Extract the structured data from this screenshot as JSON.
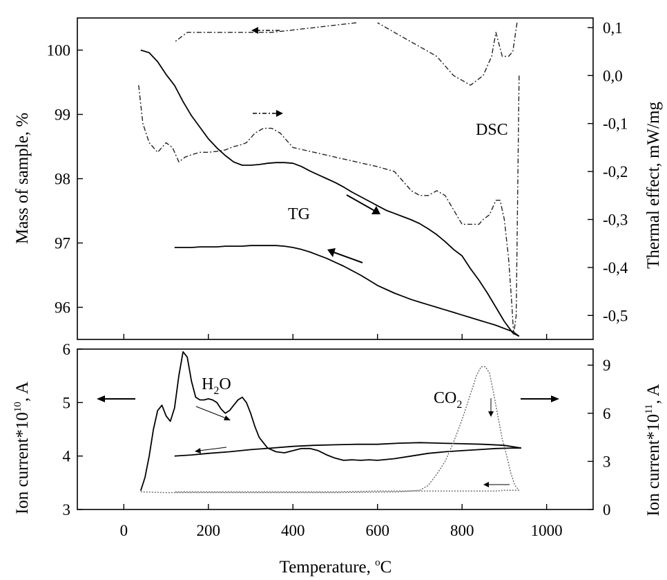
{
  "chart_data": [
    {
      "type": "line",
      "panel": "top",
      "xlabel": "",
      "ylabel_left": "Mass of sample, %",
      "ylabel_right": "Thermal effect, mW/mg",
      "xlim": [
        -110,
        1110
      ],
      "ylim_left": [
        95.5,
        100.5
      ],
      "ylim_right": [
        -0.55,
        0.12
      ],
      "yticks_left": [
        "96",
        "97",
        "98",
        "99",
        "100"
      ],
      "yticks_right": [
        "0,1",
        "0,0",
        "-0,1",
        "-0,2",
        "-0,3",
        "-0,4",
        "-0,5"
      ],
      "annotations": [
        "TG",
        "DSC"
      ],
      "series": [
        {
          "axis": "left",
          "style": "solid",
          "branch": "heating",
          "x": [
            40,
            60,
            80,
            100,
            120,
            140,
            160,
            180,
            200,
            220,
            240,
            260,
            280,
            300,
            320,
            340,
            360,
            380,
            400,
            420,
            440,
            460,
            480,
            500,
            520,
            540,
            560,
            580,
            600,
            620,
            640,
            660,
            680,
            700,
            720,
            740,
            760,
            780,
            800,
            820,
            840,
            860,
            880,
            900,
            920,
            935
          ],
          "y": [
            100.0,
            99.96,
            99.82,
            99.62,
            99.45,
            99.2,
            98.98,
            98.8,
            98.62,
            98.48,
            98.36,
            98.26,
            98.21,
            98.21,
            98.22,
            98.24,
            98.25,
            98.25,
            98.24,
            98.19,
            98.12,
            98.06,
            98.0,
            97.94,
            97.87,
            97.79,
            97.72,
            97.65,
            97.58,
            97.51,
            97.46,
            97.41,
            97.36,
            97.3,
            97.22,
            97.13,
            97.02,
            96.9,
            96.8,
            96.6,
            96.42,
            96.22,
            96.0,
            95.78,
            95.6,
            95.55
          ]
        },
        {
          "axis": "left",
          "style": "solid",
          "branch": "cooling",
          "x": [
            935,
            920,
            900,
            880,
            860,
            840,
            820,
            800,
            780,
            760,
            740,
            720,
            700,
            680,
            660,
            640,
            620,
            600,
            580,
            560,
            540,
            520,
            500,
            480,
            460,
            440,
            420,
            400,
            380,
            360,
            340,
            320,
            300,
            280,
            260,
            240,
            220,
            200,
            180,
            160,
            140,
            120
          ],
          "y": [
            95.55,
            95.62,
            95.67,
            95.72,
            95.76,
            95.8,
            95.84,
            95.88,
            95.92,
            95.96,
            96.0,
            96.04,
            96.08,
            96.12,
            96.17,
            96.22,
            96.28,
            96.34,
            96.42,
            96.5,
            96.57,
            96.64,
            96.7,
            96.76,
            96.81,
            96.86,
            96.9,
            96.93,
            96.95,
            96.96,
            96.96,
            96.96,
            96.96,
            96.95,
            96.95,
            96.95,
            96.94,
            96.94,
            96.94,
            96.93,
            96.93,
            96.93
          ]
        },
        {
          "axis": "right",
          "style": "dash-dot",
          "branch": "heating",
          "x": [
            35,
            45,
            60,
            80,
            100,
            115,
            130,
            145,
            160,
            180,
            200,
            220,
            240,
            260,
            275,
            290,
            310,
            330,
            350,
            370,
            400,
            450,
            500,
            550,
            600,
            640,
            660,
            680,
            700,
            720,
            740,
            760,
            780,
            800,
            820,
            840,
            850,
            865,
            880,
            890,
            900,
            910,
            918,
            922,
            928,
            935
          ],
          "y": [
            -0.02,
            -0.1,
            -0.14,
            -0.16,
            -0.14,
            -0.15,
            -0.18,
            -0.17,
            -0.165,
            -0.16,
            -0.16,
            -0.158,
            -0.155,
            -0.148,
            -0.145,
            -0.14,
            -0.12,
            -0.11,
            -0.11,
            -0.12,
            -0.15,
            -0.16,
            -0.17,
            -0.18,
            -0.19,
            -0.2,
            -0.22,
            -0.24,
            -0.25,
            -0.25,
            -0.24,
            -0.25,
            -0.28,
            -0.31,
            -0.31,
            -0.31,
            -0.3,
            -0.29,
            -0.26,
            -0.26,
            -0.3,
            -0.38,
            -0.48,
            -0.54,
            -0.5,
            0.0
          ]
        },
        {
          "axis": "right",
          "style": "dash-dot",
          "branch": "cooling",
          "x": [
            930,
            920,
            910,
            895,
            880,
            870,
            850,
            820,
            800,
            780,
            760,
            740,
            700,
            680,
            660,
            640,
            620,
            600
          ],
          "y": [
            0.11,
            0.05,
            0.04,
            0.04,
            0.09,
            0.04,
            0.0,
            -0.02,
            -0.01,
            0.0,
            0.02,
            0.04,
            0.06,
            0.07,
            0.08,
            0.09,
            0.1,
            0.11
          ]
        },
        {
          "axis": "right",
          "style": "dash-dot",
          "branch": "cooling",
          "x": [
            550,
            500,
            450,
            400,
            350,
            300,
            250,
            200,
            150,
            120
          ],
          "y": [
            0.11,
            0.105,
            0.1,
            0.095,
            0.09,
            0.09,
            0.09,
            0.09,
            0.09,
            0.07
          ]
        }
      ]
    },
    {
      "type": "line",
      "panel": "bottom",
      "xlabel": "Temperature, °C",
      "ylabel_left": "Ion current*10^10, A",
      "ylabel_right": "Ion current*10^11, A",
      "xlim": [
        -110,
        1110
      ],
      "ylim_left": [
        3,
        6
      ],
      "ylim_right": [
        0,
        10
      ],
      "xticks": [
        "0",
        "200",
        "400",
        "600",
        "800",
        "1000"
      ],
      "yticks_left": [
        "3",
        "4",
        "5",
        "6"
      ],
      "yticks_right": [
        "0",
        "3",
        "6",
        "9"
      ],
      "annotations": [
        "H2O",
        "CO2"
      ],
      "series": [
        {
          "name": "H2O",
          "axis": "left",
          "style": "solid",
          "branch": "heating",
          "x": [
            40,
            50,
            60,
            70,
            80,
            90,
            100,
            110,
            120,
            130,
            140,
            150,
            160,
            170,
            180,
            190,
            200,
            210,
            220,
            230,
            240,
            250,
            260,
            270,
            280,
            290,
            300,
            310,
            320,
            340,
            360,
            380,
            400,
            420,
            440,
            460,
            480,
            500,
            520,
            540,
            560,
            580,
            600,
            640,
            680,
            720,
            760,
            800,
            840,
            880,
            920,
            940
          ],
          "y": [
            3.35,
            3.6,
            4.0,
            4.5,
            4.85,
            4.95,
            4.75,
            4.65,
            4.9,
            5.5,
            5.95,
            5.85,
            5.4,
            5.1,
            5.05,
            5.05,
            5.07,
            5.05,
            5.0,
            4.88,
            4.8,
            4.85,
            4.95,
            5.05,
            5.1,
            5.0,
            4.8,
            4.55,
            4.35,
            4.15,
            4.08,
            4.06,
            4.1,
            4.14,
            4.14,
            4.1,
            4.02,
            3.96,
            3.92,
            3.93,
            3.92,
            3.93,
            3.92,
            3.95,
            4.0,
            4.05,
            4.08,
            4.1,
            4.12,
            4.14,
            4.15,
            4.15
          ]
        },
        {
          "name": "H2O",
          "axis": "left",
          "style": "solid",
          "branch": "cooling",
          "x": [
            940,
            900,
            850,
            800,
            750,
            700,
            650,
            600,
            550,
            500,
            450,
            400,
            350,
            300,
            250,
            200,
            160,
            120
          ],
          "y": [
            4.15,
            4.2,
            4.22,
            4.23,
            4.24,
            4.25,
            4.24,
            4.22,
            4.22,
            4.21,
            4.2,
            4.18,
            4.15,
            4.12,
            4.08,
            4.05,
            4.02,
            4.0
          ]
        },
        {
          "name": "CO2",
          "axis": "right",
          "style": "dotted",
          "branch": "heating",
          "x": [
            40,
            100,
            200,
            300,
            400,
            500,
            600,
            650,
            700,
            720,
            740,
            760,
            780,
            800,
            820,
            835,
            845,
            855,
            865,
            875,
            885,
            895,
            905,
            915,
            925,
            935
          ],
          "y": [
            1.1,
            1.05,
            1.05,
            1.05,
            1.05,
            1.05,
            1.08,
            1.1,
            1.2,
            1.5,
            2.2,
            3.0,
            4.2,
            5.6,
            7.2,
            8.4,
            8.9,
            8.9,
            8.5,
            7.2,
            5.8,
            4.4,
            3.4,
            2.3,
            1.5,
            1.2
          ]
        },
        {
          "name": "CO2",
          "axis": "right",
          "style": "dotted",
          "branch": "cooling",
          "x": [
            935,
            920,
            900,
            880,
            850,
            800,
            750,
            700,
            600,
            500,
            400,
            300,
            200,
            120
          ],
          "y": [
            1.2,
            1.2,
            1.2,
            1.15,
            1.15,
            1.15,
            1.15,
            1.15,
            1.15,
            1.1,
            1.1,
            1.1,
            1.1,
            1.1
          ]
        }
      ]
    }
  ],
  "labels": {
    "dsc": "DSC",
    "tg": "TG",
    "h2o_main": "H",
    "h2o_sub": "2",
    "h2o_end": "O",
    "co2_main": "CO",
    "co2_sub": "2",
    "y_top_left": "Mass of sample, %",
    "y_top_right": "Thermal effect, mW/mg",
    "y_bot_left_main": "Ion current*10",
    "y_bot_left_sup": "10",
    "y_bot_left_end": ", A",
    "y_bot_right_main": "Ion current*10",
    "y_bot_right_sup": "11",
    "y_bot_right_end": ", A",
    "x_title_main": "Temperature, ",
    "x_title_sup": "o",
    "x_title_end": "C"
  }
}
